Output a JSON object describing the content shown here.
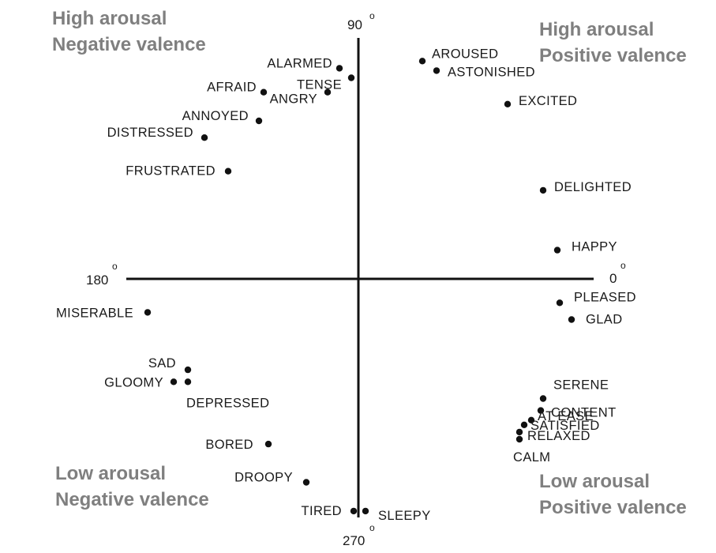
{
  "chart_data": {
    "type": "scatter",
    "quadrant_labels": {
      "top_left": [
        "High arousal",
        "Negative valence"
      ],
      "top_right": [
        "High arousal",
        "Positive valence"
      ],
      "bottom_left": [
        "Low arousal",
        "Negative valence"
      ],
      "bottom_right": [
        "Low arousal",
        "Positive valence"
      ]
    },
    "axis_labels": {
      "right": "0",
      "top": "90",
      "left": "180",
      "bottom": "270"
    },
    "degree_symbol": "o",
    "xlim": [
      -1,
      1
    ],
    "ylim": [
      -1,
      1
    ],
    "grid": false,
    "colors": {
      "quadrant_text": "#7f7f7f",
      "marks": "#111111"
    },
    "points": [
      {
        "label": "ALARMED",
        "x": -0.08,
        "y": 0.88
      },
      {
        "label": "TENSE",
        "x": -0.03,
        "y": 0.84
      },
      {
        "label": "AFRAID",
        "x": -0.4,
        "y": 0.78
      },
      {
        "label": "ANGRY",
        "x": -0.13,
        "y": 0.78
      },
      {
        "label": "ANNOYED",
        "x": -0.42,
        "y": 0.66
      },
      {
        "label": "DISTRESSED",
        "x": -0.65,
        "y": 0.59
      },
      {
        "label": "FRUSTRATED",
        "x": -0.55,
        "y": 0.45
      },
      {
        "label": "AROUSED",
        "x": 0.27,
        "y": 0.91
      },
      {
        "label": "ASTONISHED",
        "x": 0.33,
        "y": 0.87
      },
      {
        "label": "EXCITED",
        "x": 0.63,
        "y": 0.73
      },
      {
        "label": "DELIGHTED",
        "x": 0.78,
        "y": 0.37
      },
      {
        "label": "HAPPY",
        "x": 0.84,
        "y": 0.12
      },
      {
        "label": "PLEASED",
        "x": 0.85,
        "y": -0.1
      },
      {
        "label": "GLAD",
        "x": 0.9,
        "y": -0.17
      },
      {
        "label": "SERENE",
        "x": 0.78,
        "y": -0.5
      },
      {
        "label": "CONTENT",
        "x": 0.77,
        "y": -0.55
      },
      {
        "label": "AT EASE",
        "x": 0.73,
        "y": -0.59
      },
      {
        "label": "SATISFIED",
        "x": 0.7,
        "y": -0.61
      },
      {
        "label": "RELAXED",
        "x": 0.68,
        "y": -0.64
      },
      {
        "label": "CALM",
        "x": 0.68,
        "y": -0.67
      },
      {
        "label": "MISERABLE",
        "x": -0.89,
        "y": -0.14
      },
      {
        "label": "SAD",
        "x": -0.72,
        "y": -0.38
      },
      {
        "label": "GLOOMY",
        "x": -0.78,
        "y": -0.43
      },
      {
        "label": "DEPRESSED",
        "x": -0.72,
        "y": -0.43
      },
      {
        "label": "BORED",
        "x": -0.38,
        "y": -0.69
      },
      {
        "label": "DROOPY",
        "x": -0.22,
        "y": -0.85
      },
      {
        "label": "TIRED",
        "x": -0.02,
        "y": -0.97
      },
      {
        "label": "SLEEPY",
        "x": 0.03,
        "y": -0.97
      }
    ]
  }
}
